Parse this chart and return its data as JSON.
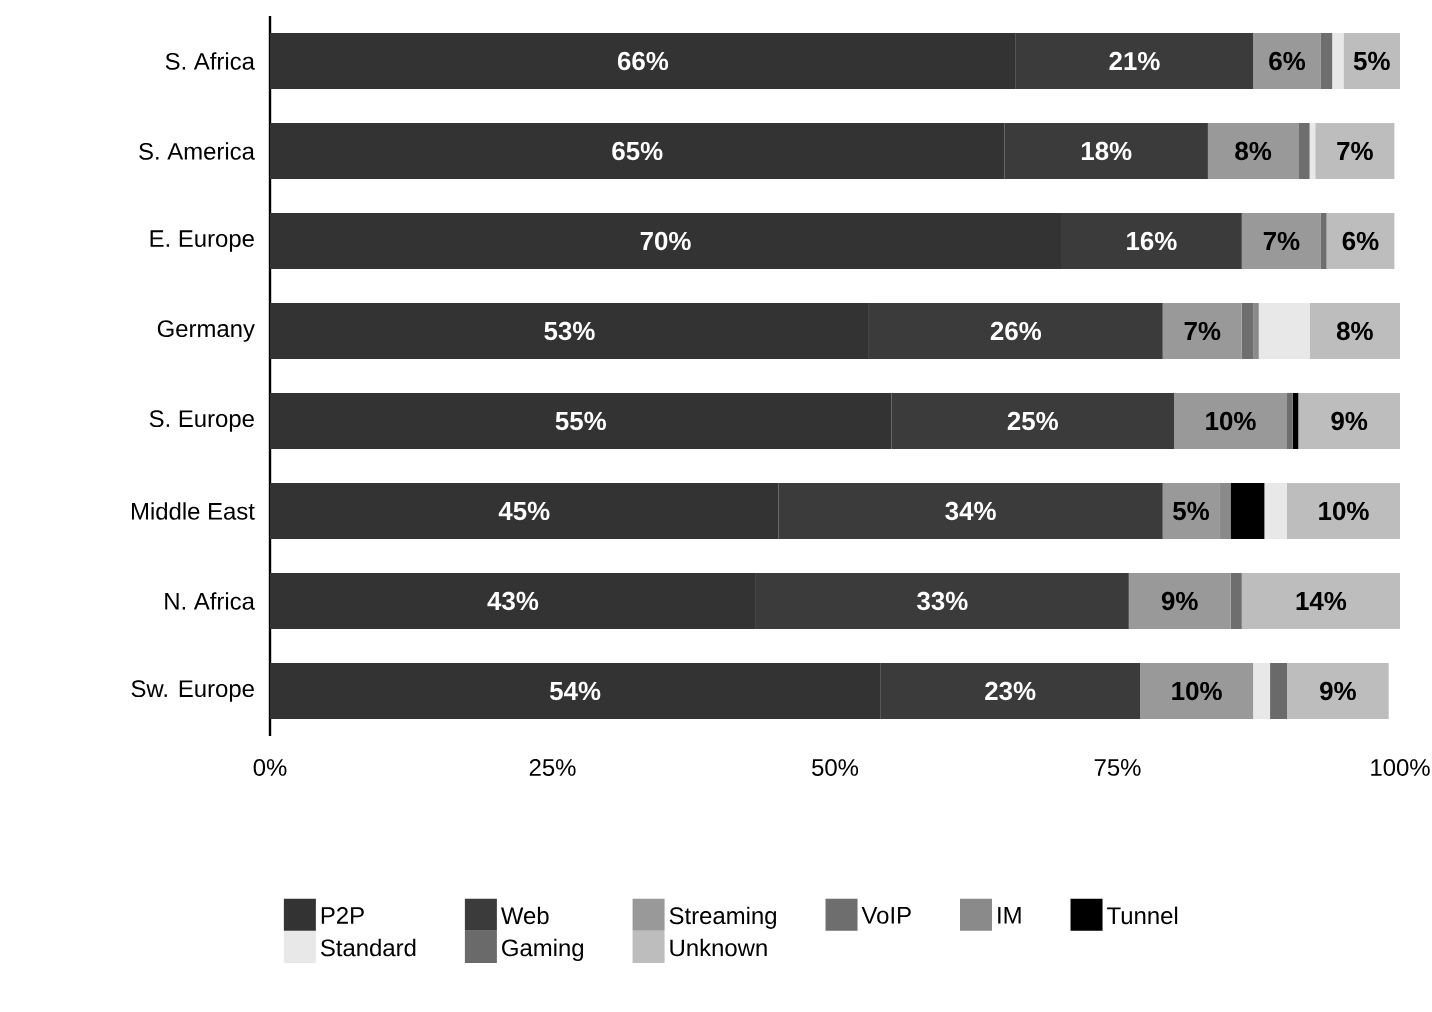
{
  "chart_data": {
    "type": "bar",
    "orientation": "horizontal",
    "stacked": true,
    "categories": [
      "S. Africa",
      "S. America",
      "E. Europe",
      "Germany",
      "S. Europe",
      "Middle East",
      "N. Africa",
      "Sw. Europe"
    ],
    "xlim": [
      0,
      100
    ],
    "xticks": [
      {
        "value": 0,
        "label": "0%"
      },
      {
        "value": 25,
        "label": "25%"
      },
      {
        "value": 50,
        "label": "50%"
      },
      {
        "value": 75,
        "label": "75%"
      },
      {
        "value": 100,
        "label": "100%"
      }
    ],
    "legend": "bottom",
    "series": [
      {
        "name": "P2P",
        "color": "#333333",
        "values": [
          66,
          65,
          70,
          53,
          55,
          45,
          43,
          54
        ],
        "value_labels": [
          "66%",
          "65%",
          "70%",
          "53%",
          "55%",
          "45%",
          "43%",
          "54%"
        ]
      },
      {
        "name": "Web",
        "color": "#3b3b3b",
        "values": [
          21,
          18,
          16,
          26,
          25,
          34,
          33,
          23
        ],
        "value_labels": [
          "21%",
          "18%",
          "16%",
          "26%",
          "25%",
          "34%",
          "33%",
          "23%"
        ]
      },
      {
        "name": "Streaming",
        "color": "#999999",
        "values": [
          6,
          8,
          7,
          7,
          10,
          5,
          9,
          10
        ],
        "value_labels": [
          "6%",
          "8%",
          "7%",
          "7%",
          "10%",
          "5%",
          "9%",
          "10%"
        ]
      },
      {
        "name": "VoIP",
        "color": "#6e6e6e",
        "values": [
          1,
          1,
          0.5,
          1,
          0.5,
          null,
          1,
          null
        ]
      },
      {
        "name": "IM",
        "color": "#8a8a8a",
        "values": [
          null,
          null,
          null,
          0.5,
          null,
          1,
          null,
          null
        ]
      },
      {
        "name": "Tunnel",
        "color": "#000000",
        "values": [
          null,
          null,
          null,
          null,
          0.5,
          3,
          null,
          null
        ]
      },
      {
        "name": "Standard",
        "color": "#e8e8e8",
        "values": [
          1,
          0.5,
          null,
          4.5,
          null,
          2,
          null,
          1.5
        ]
      },
      {
        "name": "Gaming",
        "color": "#6a6a6a",
        "values": [
          null,
          null,
          null,
          null,
          null,
          null,
          null,
          1.5
        ]
      },
      {
        "name": "Unknown",
        "color": "#bdbdbd",
        "values": [
          5,
          7,
          6,
          8,
          9,
          10,
          14,
          9
        ],
        "value_labels": [
          "5%",
          "7%",
          "6%",
          "8%",
          "9%",
          "10%",
          "14%",
          "9%"
        ]
      }
    ]
  }
}
